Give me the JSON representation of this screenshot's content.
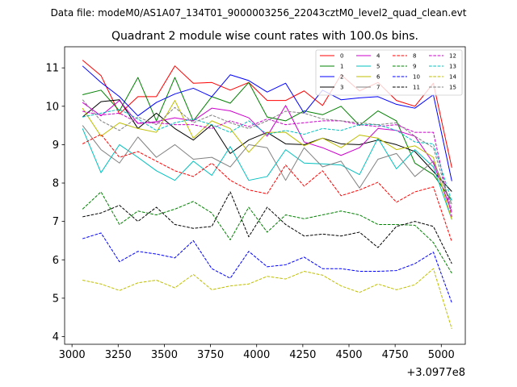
{
  "figure": {
    "suptitle": "Data file: modeM0/AS1A07_134T01_9000003256_22043cztM0_level2_quad_clean.evt",
    "offset_label": "+3.0977e8"
  },
  "chart_data": {
    "type": "line",
    "title": "Quadrant 2 module wise count rates with 100.0s bins.",
    "xlabel": "",
    "ylabel": "",
    "xlim": [
      2960,
      5130
    ],
    "ylim": [
      3.8,
      11.55
    ],
    "x_offset": 309770000,
    "xticks": [
      3000,
      3250,
      3500,
      3750,
      4000,
      4250,
      4500,
      4750,
      5000
    ],
    "yticks": [
      4,
      5,
      6,
      7,
      8,
      9,
      10,
      11
    ],
    "grid": false,
    "legend_position": "top-right",
    "x": [
      3057,
      3157,
      3257,
      3357,
      3457,
      3557,
      3657,
      3757,
      3857,
      3957,
      4057,
      4157,
      4257,
      4357,
      4457,
      4557,
      4657,
      4757,
      4857,
      4957,
      5057
    ],
    "series": [
      {
        "name": "0",
        "color": "#ff0000",
        "dash": "solid",
        "values": [
          11.2,
          10.8,
          9.8,
          10.25,
          10.25,
          11.05,
          10.6,
          10.62,
          10.42,
          10.62,
          10.15,
          10.15,
          10.4,
          10.02,
          10.82,
          10.4,
          10.62,
          10.15,
          10.0,
          10.6,
          8.4
        ]
      },
      {
        "name": "1",
        "color": "#008000",
        "dash": "solid",
        "values": [
          10.3,
          10.42,
          9.88,
          10.75,
          9.62,
          10.75,
          9.62,
          10.25,
          10.08,
          10.62,
          9.72,
          9.62,
          9.88,
          9.78,
          10.0,
          9.5,
          9.88,
          9.62,
          8.52,
          8.22,
          7.55
        ]
      },
      {
        "name": "2",
        "color": "#0000ff",
        "dash": "solid",
        "values": [
          11.05,
          10.62,
          10.25,
          9.75,
          10.1,
          10.32,
          10.47,
          10.25,
          10.82,
          10.67,
          10.37,
          10.6,
          9.82,
          10.42,
          10.17,
          10.22,
          10.25,
          10.05,
          9.95,
          10.3,
          8.05
        ]
      },
      {
        "name": "3",
        "color": "#000000",
        "dash": "solid",
        "values": [
          9.72,
          10.12,
          10.17,
          9.42,
          9.82,
          9.42,
          9.12,
          9.52,
          8.77,
          9.12,
          9.32,
          9.02,
          9.0,
          9.17,
          9.02,
          9.0,
          9.12,
          9.0,
          8.82,
          8.3,
          7.78
        ]
      },
      {
        "name": "4",
        "color": "#cc00cc",
        "dash": "solid",
        "values": [
          10.1,
          9.75,
          10.15,
          9.55,
          9.6,
          9.7,
          9.62,
          9.95,
          9.88,
          9.7,
          9.22,
          10.02,
          9.07,
          8.92,
          8.72,
          8.92,
          9.42,
          9.37,
          9.22,
          8.52,
          7.25
        ]
      },
      {
        "name": "5",
        "color": "#00bfbf",
        "dash": "solid",
        "values": [
          9.42,
          8.27,
          9.0,
          8.67,
          8.32,
          8.07,
          8.57,
          8.2,
          8.95,
          8.07,
          8.17,
          8.87,
          8.52,
          8.5,
          8.47,
          8.22,
          9.17,
          8.37,
          8.87,
          8.42,
          7.05
        ]
      },
      {
        "name": "6",
        "color": "#bfbf00",
        "dash": "solid",
        "values": [
          9.95,
          9.22,
          9.57,
          9.42,
          9.32,
          10.15,
          9.17,
          9.62,
          9.42,
          8.8,
          9.32,
          9.32,
          8.97,
          9.17,
          8.92,
          9.25,
          9.17,
          8.87,
          8.97,
          8.67,
          7.05
        ]
      },
      {
        "name": "7",
        "color": "#808080",
        "dash": "solid",
        "values": [
          9.5,
          8.87,
          8.52,
          9.2,
          8.67,
          9.0,
          8.62,
          8.67,
          8.42,
          9.0,
          8.92,
          8.07,
          8.92,
          8.42,
          8.57,
          7.87,
          8.62,
          8.77,
          8.17,
          8.57,
          7.45
        ]
      },
      {
        "name": "8",
        "color": "#ff0000",
        "dash": "dashed",
        "values": [
          9.02,
          9.27,
          8.67,
          8.82,
          8.57,
          8.32,
          8.17,
          8.52,
          8.07,
          7.82,
          7.72,
          8.47,
          7.92,
          8.32,
          7.67,
          7.82,
          8.02,
          7.5,
          7.77,
          7.9,
          6.47
        ]
      },
      {
        "name": "9",
        "color": "#008000",
        "dash": "dashed",
        "values": [
          7.32,
          7.77,
          6.92,
          7.27,
          7.17,
          7.32,
          7.52,
          7.22,
          6.52,
          7.37,
          6.72,
          7.17,
          7.07,
          7.17,
          7.27,
          7.17,
          6.92,
          6.92,
          6.9,
          6.45,
          5.65
        ]
      },
      {
        "name": "10",
        "color": "#0000ff",
        "dash": "dashed",
        "values": [
          6.55,
          6.7,
          5.95,
          6.22,
          6.15,
          6.05,
          6.5,
          5.77,
          5.52,
          6.22,
          5.82,
          5.87,
          6.07,
          5.77,
          5.77,
          5.7,
          5.7,
          5.72,
          5.9,
          6.2,
          4.88
        ]
      },
      {
        "name": "11",
        "color": "#000000",
        "dash": "dashed",
        "values": [
          7.12,
          7.22,
          7.42,
          7.0,
          7.37,
          6.92,
          6.82,
          6.87,
          7.77,
          6.6,
          7.37,
          6.92,
          6.62,
          6.67,
          6.62,
          6.72,
          6.32,
          6.87,
          7.0,
          6.87,
          5.9
        ]
      },
      {
        "name": "12",
        "color": "#cc00cc",
        "dash": "dashed",
        "values": [
          9.87,
          9.77,
          9.82,
          9.57,
          9.57,
          9.52,
          9.52,
          9.42,
          9.62,
          9.47,
          9.67,
          9.52,
          9.57,
          9.62,
          9.62,
          9.52,
          9.47,
          9.52,
          9.32,
          9.32,
          7.12
        ]
      },
      {
        "name": "13",
        "color": "#00bfbf",
        "dash": "dashed",
        "values": [
          9.72,
          9.82,
          9.92,
          9.67,
          9.37,
          9.57,
          9.67,
          9.52,
          9.32,
          9.62,
          9.27,
          9.37,
          9.27,
          9.42,
          9.37,
          9.52,
          9.52,
          9.37,
          9.07,
          9.02,
          7.52
        ]
      },
      {
        "name": "14",
        "color": "#bfbf00",
        "dash": "dashed",
        "values": [
          5.47,
          5.37,
          5.2,
          5.4,
          5.47,
          5.27,
          5.62,
          5.22,
          5.32,
          5.37,
          5.57,
          5.5,
          5.7,
          5.6,
          5.32,
          5.15,
          5.37,
          5.22,
          5.35,
          5.77,
          4.2
        ]
      },
      {
        "name": "15",
        "color": "#808080",
        "dash": "dashed",
        "values": [
          10.17,
          9.62,
          9.37,
          9.72,
          9.52,
          9.97,
          9.57,
          9.77,
          9.57,
          9.42,
          9.62,
          9.87,
          9.82,
          9.67,
          9.62,
          9.57,
          9.52,
          9.57,
          9.22,
          8.92,
          7.32
        ]
      }
    ]
  }
}
